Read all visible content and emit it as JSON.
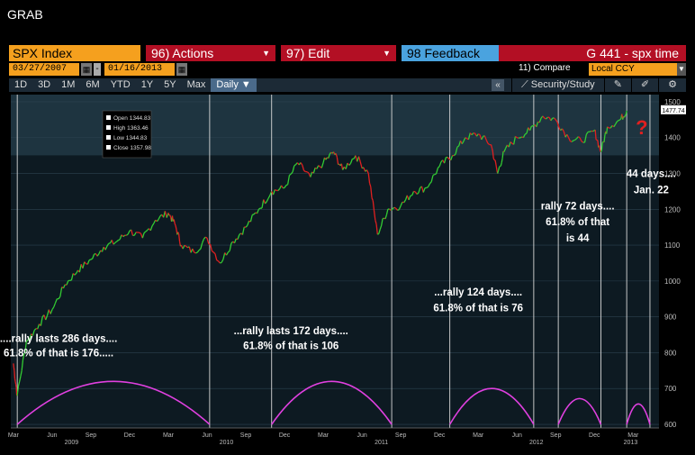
{
  "window": {
    "title": "GRAB"
  },
  "command_bar": {
    "security": "SPX Index",
    "actions": "96) Actions",
    "edit": "97) Edit",
    "feedback": "98 Feedback",
    "title": "G 441 - spx time"
  },
  "date_range": {
    "start": "03/27/2007",
    "end": "01/16/2013",
    "compare": "11) Compare",
    "currency": "Local CCY"
  },
  "periods": [
    "1D",
    "3D",
    "1M",
    "6M",
    "YTD",
    "1Y",
    "5Y",
    "Max"
  ],
  "frequency": "Daily",
  "toolbar": {
    "study_label": "Security/Study"
  },
  "colors": {
    "up": "#33cc33",
    "down": "#e02020",
    "arc": "#e040e0",
    "accent": "#f5a01e"
  },
  "chart_data": {
    "type": "line",
    "ylim": [
      590,
      1520
    ],
    "yticks": [
      1500,
      1400,
      1300,
      1200,
      1100,
      1000,
      900,
      800,
      700,
      600
    ],
    "last_price_label": "1477.74",
    "xticks": [
      {
        "label": "Mar",
        "t": 0
      },
      {
        "label": "Jun",
        "t": 3
      },
      {
        "label": "Sep",
        "t": 6
      },
      {
        "label": "Dec",
        "t": 9
      },
      {
        "label": "Mar",
        "t": 12
      },
      {
        "label": "Jun",
        "t": 15
      },
      {
        "label": "Sep",
        "t": 18
      },
      {
        "label": "Dec",
        "t": 21
      },
      {
        "label": "Mar",
        "t": 24
      },
      {
        "label": "Jun",
        "t": 27
      },
      {
        "label": "Sep",
        "t": 30
      },
      {
        "label": "Dec",
        "t": 33
      },
      {
        "label": "Mar",
        "t": 36
      },
      {
        "label": "Jun",
        "t": 39
      },
      {
        "label": "Sep",
        "t": 42
      },
      {
        "label": "Dec",
        "t": 45
      },
      {
        "label": "Mar",
        "t": 48
      }
    ],
    "years": [
      {
        "label": "2009",
        "t": 4.5
      },
      {
        "label": "2010",
        "t": 16.5
      },
      {
        "label": "2011",
        "t": 28.5
      },
      {
        "label": "2012",
        "t": 40.5
      },
      {
        "label": "2013",
        "t": 47.8
      }
    ],
    "xlim": [
      -0.2,
      50
    ],
    "series": [
      {
        "x": [
          0,
          0.3,
          1,
          2,
          3,
          4,
          5,
          6,
          7,
          8,
          9,
          10,
          11,
          12,
          12.5,
          13,
          14,
          15,
          16,
          17,
          18,
          19,
          20,
          21,
          22,
          23,
          24,
          24.8,
          25.5,
          26.5,
          27.5,
          28.2,
          29,
          30,
          31,
          32,
          33,
          34,
          35,
          36,
          37,
          37.5,
          38,
          39,
          40,
          41,
          42,
          43,
          44,
          45,
          45.5,
          46,
          47,
          47.5
        ],
        "y": [
          770,
          680,
          830,
          880,
          920,
          990,
          1030,
          1060,
          1095,
          1110,
          1140,
          1120,
          1170,
          1190,
          1160,
          1100,
          1080,
          1120,
          1050,
          1110,
          1150,
          1200,
          1250,
          1260,
          1330,
          1290,
          1330,
          1360,
          1310,
          1350,
          1300,
          1130,
          1200,
          1210,
          1250,
          1260,
          1320,
          1350,
          1400,
          1410,
          1380,
          1300,
          1360,
          1400,
          1420,
          1460,
          1450,
          1400,
          1390,
          1420,
          1360,
          1430,
          1450,
          1475
        ]
      }
    ],
    "cycles": [
      {
        "t0": 0.3,
        "t1": 15.2,
        "peak": 720
      },
      {
        "t0": 20,
        "t1": 29.3,
        "peak": 720
      },
      {
        "t0": 33.8,
        "t1": 40.3,
        "peak": 700
      },
      {
        "t0": 42.2,
        "t1": 45.5,
        "peak": 672
      },
      {
        "t0": 47.5,
        "t1": 49.3,
        "peak": 657
      }
    ],
    "vlines": [
      0.3,
      15.2,
      20,
      29.3,
      33.8,
      40.3,
      42.2,
      45.5,
      47.5,
      49.3
    ],
    "ohlc_box": {
      "open": "Open 1344.83",
      "high": "High 1363.46",
      "low": "Low 1344.83",
      "close": "Close 1357.98"
    },
    "annotations": [
      {
        "text": "....rally lasts 286 days....",
        "t": 3.5,
        "v": 830
      },
      {
        "text": "61.8% of that is 176.....",
        "t": 3.5,
        "v": 790
      },
      {
        "text": "...rally lasts 172 days....",
        "t": 21.5,
        "v": 852
      },
      {
        "text": "61.8% of that is 106",
        "t": 21.5,
        "v": 810
      },
      {
        "text": "...rally 124 days....",
        "t": 36,
        "v": 960
      },
      {
        "text": "61.8% of that is  76",
        "t": 36,
        "v": 915
      },
      {
        "text": "rally 72 days....",
        "t": 43.7,
        "v": 1200
      },
      {
        "text": "61.8% of that",
        "t": 43.7,
        "v": 1155
      },
      {
        "text": "is 44",
        "t": 43.7,
        "v": 1110
      },
      {
        "text": "44 days....",
        "t": 49.4,
        "v": 1290
      },
      {
        "text": "Jan. 22",
        "t": 49.4,
        "v": 1245
      }
    ],
    "question_mark": "?"
  }
}
